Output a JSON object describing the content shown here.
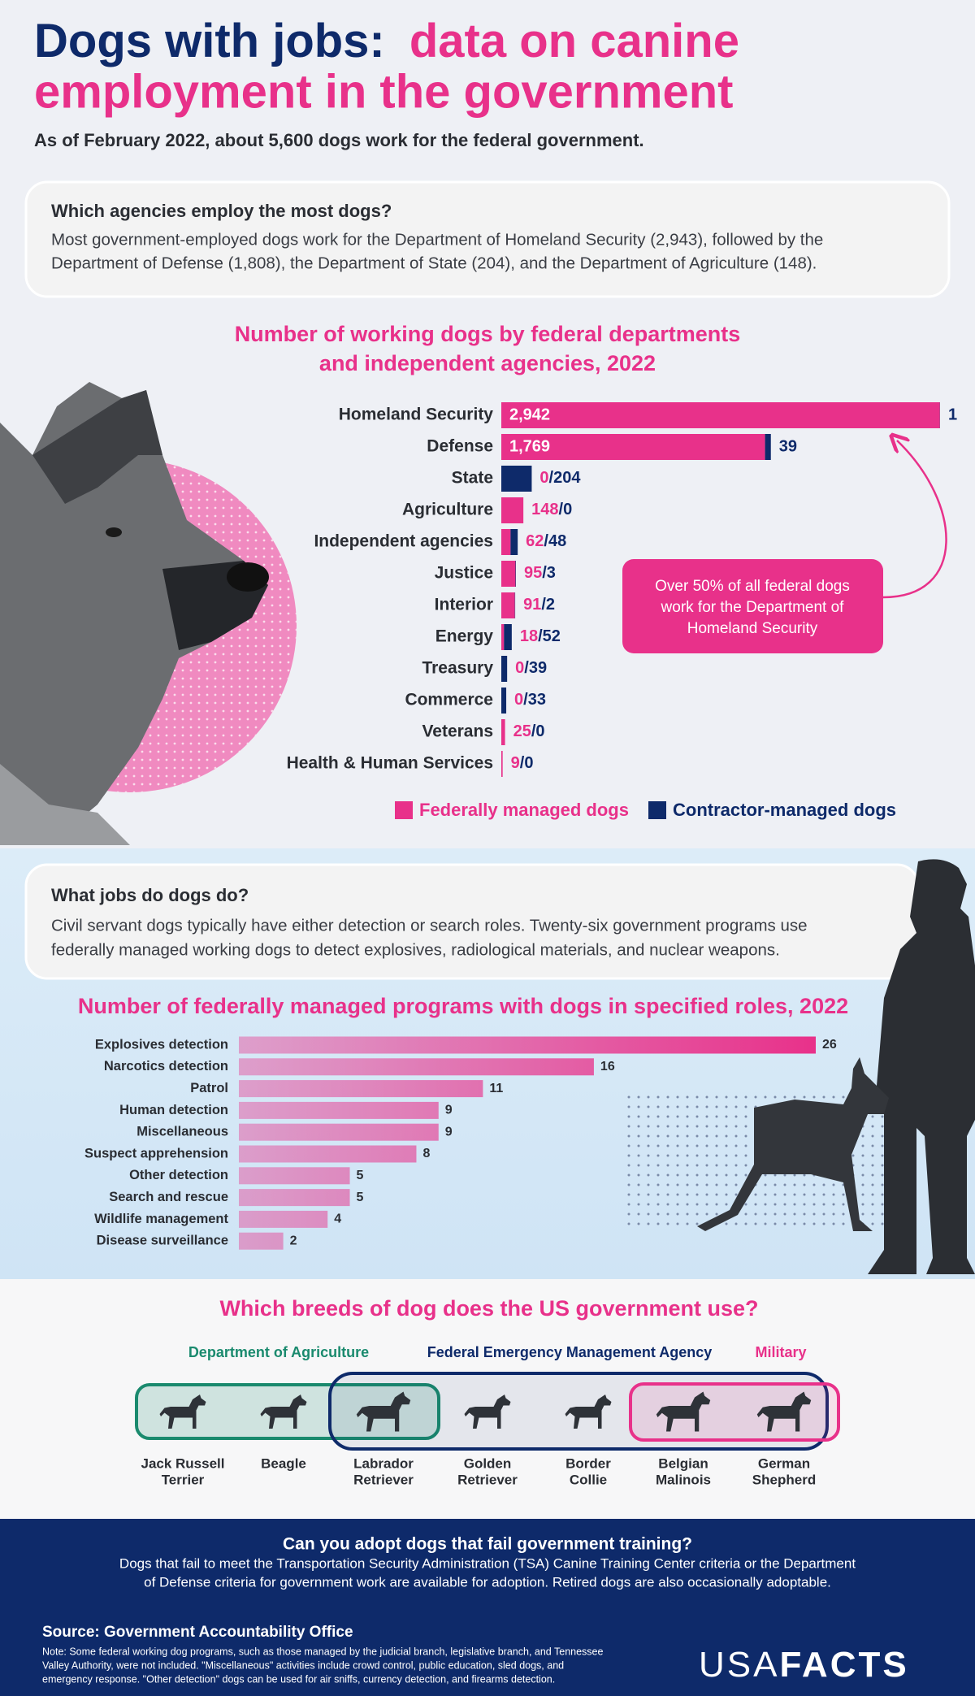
{
  "header": {
    "title_lead": "Dogs with jobs:",
    "title_rest": [
      "data on canine",
      "employment in the government"
    ],
    "subtitle": "As of February 2022, about 5,600 dogs work for the federal government."
  },
  "agencies_card": {
    "heading": "Which agencies employ the most dogs?",
    "lines": [
      "Most government-employed dogs work for the Department of Homeland Security (2,943), followed by the",
      "Department of Defense (1,808), the Department of State (204), and the Department of Agriculture (148)."
    ]
  },
  "jobs_card": {
    "heading": "What jobs do dogs do?",
    "lines": [
      "Civil servant dogs typically have either detection or search roles. Twenty-six government programs use",
      "federally managed working dogs to detect explosives, radiological materials, and nuclear weapons."
    ]
  },
  "chart_data": [
    {
      "type": "stacked-bar",
      "orientation": "horizontal",
      "title": [
        "Number of working dogs by federal departments",
        "and independent agencies, 2022"
      ],
      "categories": [
        "Homeland Security",
        "Defense",
        "State",
        "Agriculture",
        "Independent agencies",
        "Justice",
        "Interior",
        "Energy",
        "Treasury",
        "Commerce",
        "Veterans",
        "Health & Human Services"
      ],
      "series": [
        {
          "name": "Federally managed dogs",
          "color": "#e8318a",
          "values": [
            2942,
            1769,
            0,
            148,
            62,
            95,
            91,
            18,
            0,
            0,
            25,
            9
          ],
          "value_labels": [
            "2,942",
            "1,769",
            "0",
            "148",
            "62",
            "95",
            "91",
            "18",
            "0",
            "0",
            "25",
            "9"
          ]
        },
        {
          "name": "Contractor-managed dogs",
          "color": "#0e2a6a",
          "values": [
            1,
            39,
            204,
            0,
            48,
            3,
            2,
            52,
            39,
            33,
            0,
            0
          ]
        }
      ],
      "label_separator": "/",
      "annotation": [
        "Over 50% of all federal dogs",
        "work for the Department of",
        "Homeland Security"
      ]
    },
    {
      "type": "bar",
      "orientation": "horizontal",
      "title": "Number of federally managed programs with dogs in specified roles, 2022",
      "categories": [
        "Explosives detection",
        "Narcotics detection",
        "Patrol",
        "Human detection",
        "Miscellaneous",
        "Suspect apprehension",
        "Other detection",
        "Search and rescue",
        "Wildlife management",
        "Disease surveillance"
      ],
      "values": [
        26,
        16,
        11,
        9,
        9,
        8,
        5,
        5,
        4,
        2
      ],
      "color": "#e8318a"
    }
  ],
  "breeds": {
    "title": "Which breeds of dog does the US government use?",
    "groups": [
      {
        "name": "Department of Agriculture",
        "color": "#1a8a6e"
      },
      {
        "name": "Federal Emergency Management Agency",
        "color": "#0e2a6a"
      },
      {
        "name": "Military",
        "color": "#e8318a"
      }
    ],
    "names": [
      [
        "Jack Russell",
        "Terrier"
      ],
      [
        "Beagle"
      ],
      [
        "Labrador",
        "Retriever"
      ],
      [
        "Golden",
        "Retriever"
      ],
      [
        "Border",
        "Collie"
      ],
      [
        "Belgian",
        "Malinois"
      ],
      [
        "German",
        "Shepherd"
      ]
    ]
  },
  "adoption": {
    "heading": "Can you adopt dogs that fail government training?",
    "lines": [
      "Dogs that fail to meet the Transportation Security Administration (TSA) Canine Training Center criteria or the Department",
      "of Defense criteria for government work are available for adoption. Retired dogs are also occasionally adoptable."
    ]
  },
  "source": "Source: Government Accountability Office",
  "note": [
    "Note: Some federal working dog programs, such as those managed by the judicial branch, legislative branch, and Tennessee",
    "Valley Authority, were not included. \"Miscellaneous\" activities include crowd control, public education, sled dogs, and",
    "emergency response. \"Other detection\" dogs can be used for air sniffs, currency detection, and firearms detection."
  ],
  "logo": {
    "light": "USA",
    "bold": "FACTS"
  }
}
